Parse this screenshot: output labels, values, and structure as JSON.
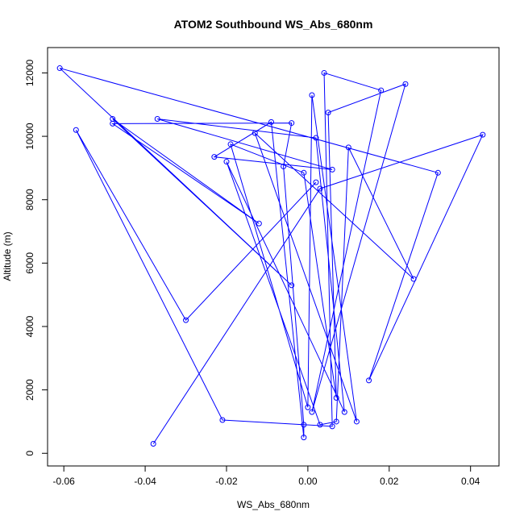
{
  "chart_data": {
    "type": "line",
    "title": "ATOM2 Southbound WS_Abs_680nm",
    "xlabel": "WS_Abs_680nm",
    "ylabel": "Altitude (m)",
    "xlim": [
      -0.064,
      0.047
    ],
    "ylim": [
      -400,
      12800
    ],
    "x_ticks": [
      -0.06,
      -0.04,
      -0.02,
      0.0,
      0.02,
      0.04
    ],
    "x_tick_labels": [
      "-0.06",
      "-0.04",
      "-0.02",
      "0.00",
      "0.02",
      "0.04"
    ],
    "y_ticks": [
      0,
      2000,
      4000,
      6000,
      8000,
      10000,
      12000
    ],
    "y_tick_labels": [
      "0",
      "2000",
      "4000",
      "6000",
      "8000",
      "10000",
      "12000"
    ],
    "grid": false,
    "series": [
      {
        "color": "#0000ff",
        "marker": "open-circle",
        "points": [
          [
            -0.038,
            300
          ],
          [
            0.003,
            8350
          ],
          [
            0.043,
            10050
          ],
          [
            0.015,
            2300
          ],
          [
            0.032,
            8850
          ],
          [
            -0.061,
            12150
          ],
          [
            -0.004,
            5300
          ],
          [
            -0.048,
            10550
          ],
          [
            -0.012,
            7250
          ],
          [
            -0.048,
            10400
          ],
          [
            -0.004,
            10420
          ],
          [
            -0.006,
            9050
          ],
          [
            -0.001,
            900
          ],
          [
            -0.001,
            500
          ],
          [
            -0.009,
            10450
          ],
          [
            -0.023,
            9350
          ],
          [
            0.006,
            8950
          ],
          [
            -0.037,
            10550
          ],
          [
            0.002,
            9950
          ],
          [
            0.009,
            1300
          ],
          [
            -0.02,
            9200
          ],
          [
            0.003,
            900
          ],
          [
            0.007,
            1000
          ],
          [
            0.01,
            9650
          ],
          [
            0.026,
            5500
          ],
          [
            -0.013,
            10100
          ],
          [
            0.012,
            1000
          ],
          [
            0.001,
            11300
          ],
          [
            0.0,
            1450
          ],
          [
            -0.019,
            9750
          ],
          [
            -0.001,
            8850
          ],
          [
            0.007,
            1750
          ],
          [
            0.005,
            10750
          ],
          [
            0.024,
            11650
          ],
          [
            0.001,
            1300
          ],
          [
            0.018,
            11450
          ],
          [
            0.004,
            12000
          ],
          [
            0.006,
            850
          ],
          [
            -0.021,
            1050
          ],
          [
            -0.057,
            10200
          ],
          [
            -0.03,
            4200
          ],
          [
            0.002,
            8550
          ]
        ]
      }
    ]
  }
}
